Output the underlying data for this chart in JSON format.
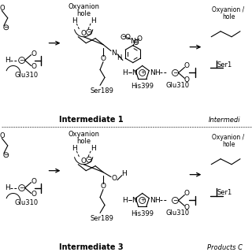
{
  "background": "#ffffff",
  "oxyanion_hole": "Oxyanion\nhole",
  "oxyanion_hole2": "Oxyanion /\nhole",
  "ser189": "Ser189",
  "his399": "His399",
  "glu310": "Glu310",
  "ser1": "Ser1",
  "intermediate1": "Intermediate 1",
  "intermediate3": "Intermediate 3",
  "intermedi": "Intermedi",
  "products": "Products C"
}
